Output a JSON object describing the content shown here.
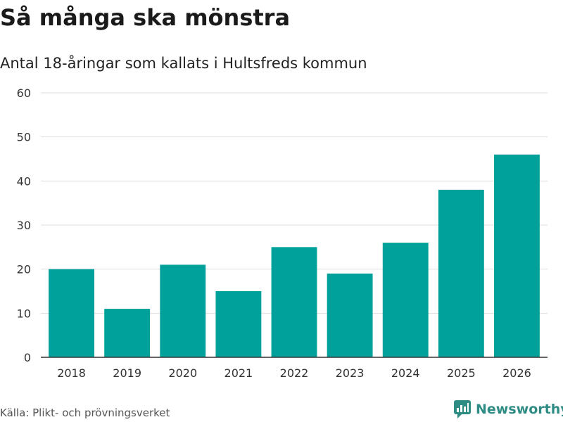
{
  "header": {
    "title": "Så många ska mönstra",
    "subtitle": "Antal 18-åringar som kallats i Hultsfreds kommun"
  },
  "footer": {
    "source": "Källa: Plikt- och prövningsverket",
    "brand": "Newsworthy"
  },
  "colors": {
    "bar": "#00a19a",
    "brand": "#2f8c84",
    "grid": "#dddddd",
    "axis": "#333333"
  },
  "chart_data": {
    "type": "bar",
    "title": "Så många ska mönstra",
    "subtitle": "Antal 18-åringar som kallats i Hultsfreds kommun",
    "xlabel": "",
    "ylabel": "",
    "categories": [
      "2018",
      "2019",
      "2020",
      "2021",
      "2022",
      "2023",
      "2024",
      "2025",
      "2026"
    ],
    "values": [
      20,
      11,
      21,
      15,
      25,
      19,
      26,
      38,
      46
    ],
    "ylim": [
      0,
      60
    ],
    "yticks": [
      0,
      10,
      20,
      30,
      40,
      50,
      60
    ],
    "grid": true,
    "legend": "none"
  }
}
